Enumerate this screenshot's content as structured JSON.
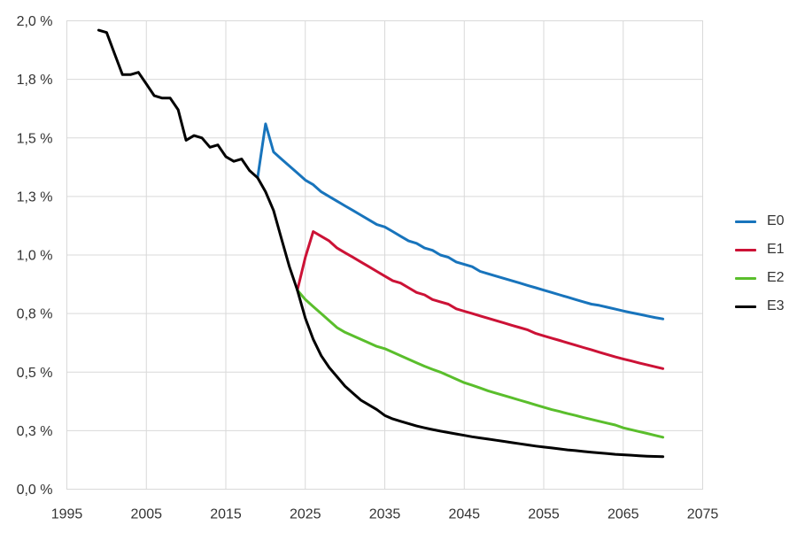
{
  "chart_data": {
    "type": "line",
    "grid": true,
    "legend_position": "right",
    "x_axis": {
      "range": [
        1995,
        2075
      ],
      "tick_values": [
        1995,
        2005,
        2015,
        2025,
        2035,
        2045,
        2055,
        2065,
        2075
      ],
      "tick_labels": [
        "1995",
        "2005",
        "2015",
        "2025",
        "2035",
        "2045",
        "2055",
        "2065",
        "2075"
      ]
    },
    "y_axis": {
      "range": [
        0,
        2
      ],
      "tick_values": [
        2.0,
        1.75,
        1.5,
        1.25,
        1.0,
        0.75,
        0.5,
        0.25,
        0.0
      ],
      "tick_labels": [
        "2,0 %",
        "1,8 %",
        "1,5 %",
        "1,3 %",
        "1,0 %",
        "0,8 %",
        "0,5 %",
        "0,3 %",
        "0,0 %"
      ]
    },
    "series": [
      {
        "name": "E0",
        "color": "#1874bc",
        "points": [
          [
            2019,
            1.33
          ],
          [
            2020,
            1.56
          ],
          [
            2021,
            1.44
          ],
          [
            2022,
            1.41
          ],
          [
            2023,
            1.38
          ],
          [
            2024,
            1.35
          ],
          [
            2025,
            1.32
          ],
          [
            2026,
            1.3
          ],
          [
            2027,
            1.27
          ],
          [
            2028,
            1.25
          ],
          [
            2029,
            1.23
          ],
          [
            2030,
            1.21
          ],
          [
            2031,
            1.19
          ],
          [
            2032,
            1.17
          ],
          [
            2033,
            1.15
          ],
          [
            2034,
            1.13
          ],
          [
            2035,
            1.12
          ],
          [
            2036,
            1.1
          ],
          [
            2037,
            1.08
          ],
          [
            2038,
            1.06
          ],
          [
            2039,
            1.05
          ],
          [
            2040,
            1.03
          ],
          [
            2041,
            1.02
          ],
          [
            2042,
            1.0
          ],
          [
            2043,
            0.99
          ],
          [
            2044,
            0.97
          ],
          [
            2045,
            0.96
          ],
          [
            2046,
            0.95
          ],
          [
            2047,
            0.93
          ],
          [
            2048,
            0.92
          ],
          [
            2049,
            0.91
          ],
          [
            2050,
            0.9
          ],
          [
            2051,
            0.89
          ],
          [
            2052,
            0.88
          ],
          [
            2053,
            0.87
          ],
          [
            2054,
            0.86
          ],
          [
            2055,
            0.85
          ],
          [
            2056,
            0.84
          ],
          [
            2057,
            0.83
          ],
          [
            2058,
            0.82
          ],
          [
            2059,
            0.81
          ],
          [
            2060,
            0.8
          ],
          [
            2061,
            0.79
          ],
          [
            2062,
            0.785
          ],
          [
            2063,
            0.777
          ],
          [
            2064,
            0.769
          ],
          [
            2065,
            0.761
          ],
          [
            2066,
            0.754
          ],
          [
            2067,
            0.747
          ],
          [
            2068,
            0.74
          ],
          [
            2069,
            0.733
          ],
          [
            2070,
            0.727
          ]
        ]
      },
      {
        "name": "E1",
        "color": "#cc1236",
        "points": [
          [
            2024,
            0.85
          ],
          [
            2025,
            0.99
          ],
          [
            2026,
            1.1
          ],
          [
            2027,
            1.08
          ],
          [
            2028,
            1.06
          ],
          [
            2029,
            1.03
          ],
          [
            2030,
            1.01
          ],
          [
            2031,
            0.99
          ],
          [
            2032,
            0.97
          ],
          [
            2033,
            0.95
          ],
          [
            2034,
            0.93
          ],
          [
            2035,
            0.91
          ],
          [
            2036,
            0.89
          ],
          [
            2037,
            0.88
          ],
          [
            2038,
            0.86
          ],
          [
            2039,
            0.84
          ],
          [
            2040,
            0.83
          ],
          [
            2041,
            0.81
          ],
          [
            2042,
            0.8
          ],
          [
            2043,
            0.79
          ],
          [
            2044,
            0.77
          ],
          [
            2045,
            0.76
          ],
          [
            2046,
            0.75
          ],
          [
            2047,
            0.74
          ],
          [
            2048,
            0.73
          ],
          [
            2049,
            0.72
          ],
          [
            2050,
            0.71
          ],
          [
            2051,
            0.7
          ],
          [
            2052,
            0.69
          ],
          [
            2053,
            0.68
          ],
          [
            2054,
            0.665
          ],
          [
            2055,
            0.655
          ],
          [
            2056,
            0.645
          ],
          [
            2057,
            0.635
          ],
          [
            2058,
            0.625
          ],
          [
            2059,
            0.615
          ],
          [
            2060,
            0.605
          ],
          [
            2061,
            0.595
          ],
          [
            2062,
            0.585
          ],
          [
            2063,
            0.575
          ],
          [
            2064,
            0.565
          ],
          [
            2065,
            0.556
          ],
          [
            2066,
            0.548
          ],
          [
            2067,
            0.539
          ],
          [
            2068,
            0.531
          ],
          [
            2069,
            0.523
          ],
          [
            2070,
            0.515
          ]
        ]
      },
      {
        "name": "E2",
        "color": "#5abe2c",
        "points": [
          [
            2024,
            0.85
          ],
          [
            2025,
            0.81
          ],
          [
            2026,
            0.78
          ],
          [
            2027,
            0.75
          ],
          [
            2028,
            0.72
          ],
          [
            2029,
            0.69
          ],
          [
            2030,
            0.67
          ],
          [
            2031,
            0.655
          ],
          [
            2032,
            0.64
          ],
          [
            2033,
            0.625
          ],
          [
            2034,
            0.61
          ],
          [
            2035,
            0.6
          ],
          [
            2036,
            0.585
          ],
          [
            2037,
            0.57
          ],
          [
            2038,
            0.555
          ],
          [
            2039,
            0.54
          ],
          [
            2040,
            0.525
          ],
          [
            2041,
            0.512
          ],
          [
            2042,
            0.5
          ],
          [
            2043,
            0.485
          ],
          [
            2044,
            0.47
          ],
          [
            2045,
            0.455
          ],
          [
            2046,
            0.444
          ],
          [
            2047,
            0.432
          ],
          [
            2048,
            0.42
          ],
          [
            2049,
            0.41
          ],
          [
            2050,
            0.4
          ],
          [
            2051,
            0.39
          ],
          [
            2052,
            0.38
          ],
          [
            2053,
            0.37
          ],
          [
            2054,
            0.36
          ],
          [
            2055,
            0.35
          ],
          [
            2056,
            0.34
          ],
          [
            2057,
            0.332
          ],
          [
            2058,
            0.323
          ],
          [
            2059,
            0.315
          ],
          [
            2060,
            0.306
          ],
          [
            2061,
            0.298
          ],
          [
            2062,
            0.29
          ],
          [
            2063,
            0.282
          ],
          [
            2064,
            0.274
          ],
          [
            2065,
            0.262
          ],
          [
            2066,
            0.254
          ],
          [
            2067,
            0.246
          ],
          [
            2068,
            0.238
          ],
          [
            2069,
            0.23
          ],
          [
            2070,
            0.222
          ]
        ]
      },
      {
        "name": "E3",
        "color": "#000000",
        "points": [
          [
            1999,
            1.96
          ],
          [
            2000,
            1.95
          ],
          [
            2001,
            1.86
          ],
          [
            2002,
            1.77
          ],
          [
            2003,
            1.77
          ],
          [
            2004,
            1.78
          ],
          [
            2005,
            1.73
          ],
          [
            2006,
            1.68
          ],
          [
            2007,
            1.67
          ],
          [
            2008,
            1.67
          ],
          [
            2009,
            1.62
          ],
          [
            2010,
            1.49
          ],
          [
            2011,
            1.51
          ],
          [
            2012,
            1.5
          ],
          [
            2013,
            1.46
          ],
          [
            2014,
            1.47
          ],
          [
            2015,
            1.42
          ],
          [
            2016,
            1.4
          ],
          [
            2017,
            1.41
          ],
          [
            2018,
            1.36
          ],
          [
            2019,
            1.33
          ],
          [
            2020,
            1.27
          ],
          [
            2021,
            1.19
          ],
          [
            2022,
            1.07
          ],
          [
            2023,
            0.95
          ],
          [
            2024,
            0.85
          ],
          [
            2025,
            0.73
          ],
          [
            2026,
            0.64
          ],
          [
            2027,
            0.57
          ],
          [
            2028,
            0.52
          ],
          [
            2029,
            0.48
          ],
          [
            2030,
            0.44
          ],
          [
            2031,
            0.41
          ],
          [
            2032,
            0.38
          ],
          [
            2033,
            0.36
          ],
          [
            2034,
            0.34
          ],
          [
            2035,
            0.315
          ],
          [
            2036,
            0.3
          ],
          [
            2037,
            0.29
          ],
          [
            2038,
            0.28
          ],
          [
            2039,
            0.27
          ],
          [
            2040,
            0.262
          ],
          [
            2041,
            0.255
          ],
          [
            2042,
            0.248
          ],
          [
            2043,
            0.242
          ],
          [
            2044,
            0.236
          ],
          [
            2045,
            0.23
          ],
          [
            2046,
            0.224
          ],
          [
            2047,
            0.219
          ],
          [
            2048,
            0.214
          ],
          [
            2049,
            0.209
          ],
          [
            2050,
            0.204
          ],
          [
            2051,
            0.199
          ],
          [
            2052,
            0.194
          ],
          [
            2053,
            0.189
          ],
          [
            2054,
            0.184
          ],
          [
            2055,
            0.18
          ],
          [
            2056,
            0.176
          ],
          [
            2057,
            0.172
          ],
          [
            2058,
            0.168
          ],
          [
            2059,
            0.165
          ],
          [
            2060,
            0.161
          ],
          [
            2061,
            0.158
          ],
          [
            2062,
            0.155
          ],
          [
            2063,
            0.152
          ],
          [
            2064,
            0.149
          ],
          [
            2065,
            0.147
          ],
          [
            2066,
            0.145
          ],
          [
            2067,
            0.143
          ],
          [
            2068,
            0.141
          ],
          [
            2069,
            0.14
          ],
          [
            2070,
            0.139
          ]
        ]
      }
    ]
  },
  "legend": {
    "items": [
      {
        "label": "E0",
        "color": "#1874bc"
      },
      {
        "label": "E1",
        "color": "#cc1236"
      },
      {
        "label": "E2",
        "color": "#5abe2c"
      },
      {
        "label": "E3",
        "color": "#000000"
      }
    ]
  },
  "colors": {
    "gridline": "#d9d9d9",
    "axis_text": "#333333",
    "background": "#ffffff"
  }
}
